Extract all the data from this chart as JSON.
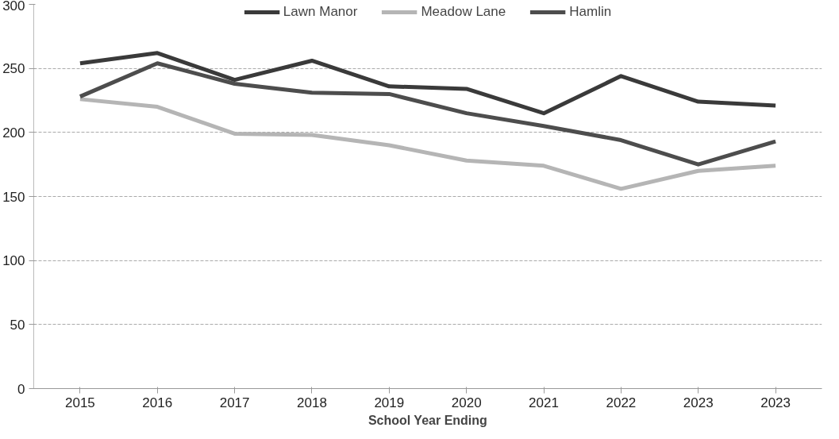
{
  "chart_data": {
    "type": "line",
    "xlabel": "School Year Ending",
    "categories": [
      "2015",
      "2016",
      "2017",
      "2018",
      "2019",
      "2020",
      "2021",
      "2022",
      "2023",
      "2023"
    ],
    "series": [
      {
        "name": "Lawn Manor",
        "color": "#3a3a3a",
        "values": [
          254,
          262,
          241,
          256,
          236,
          234,
          215,
          244,
          224,
          221
        ]
      },
      {
        "name": "Meadow Lane",
        "color": "#b5b5b5",
        "values": [
          226,
          220,
          199,
          198,
          190,
          178,
          174,
          156,
          170,
          174
        ]
      },
      {
        "name": "Hamlin",
        "color": "#4d4d4d",
        "values": [
          228,
          254,
          238,
          231,
          230,
          215,
          205,
          194,
          175,
          193
        ]
      }
    ],
    "ylim": [
      0,
      300
    ],
    "yticks": [
      0,
      50,
      100,
      150,
      200,
      250,
      300
    ],
    "grid": "y",
    "legend": "top",
    "line_style": "solid",
    "marker": "none"
  }
}
